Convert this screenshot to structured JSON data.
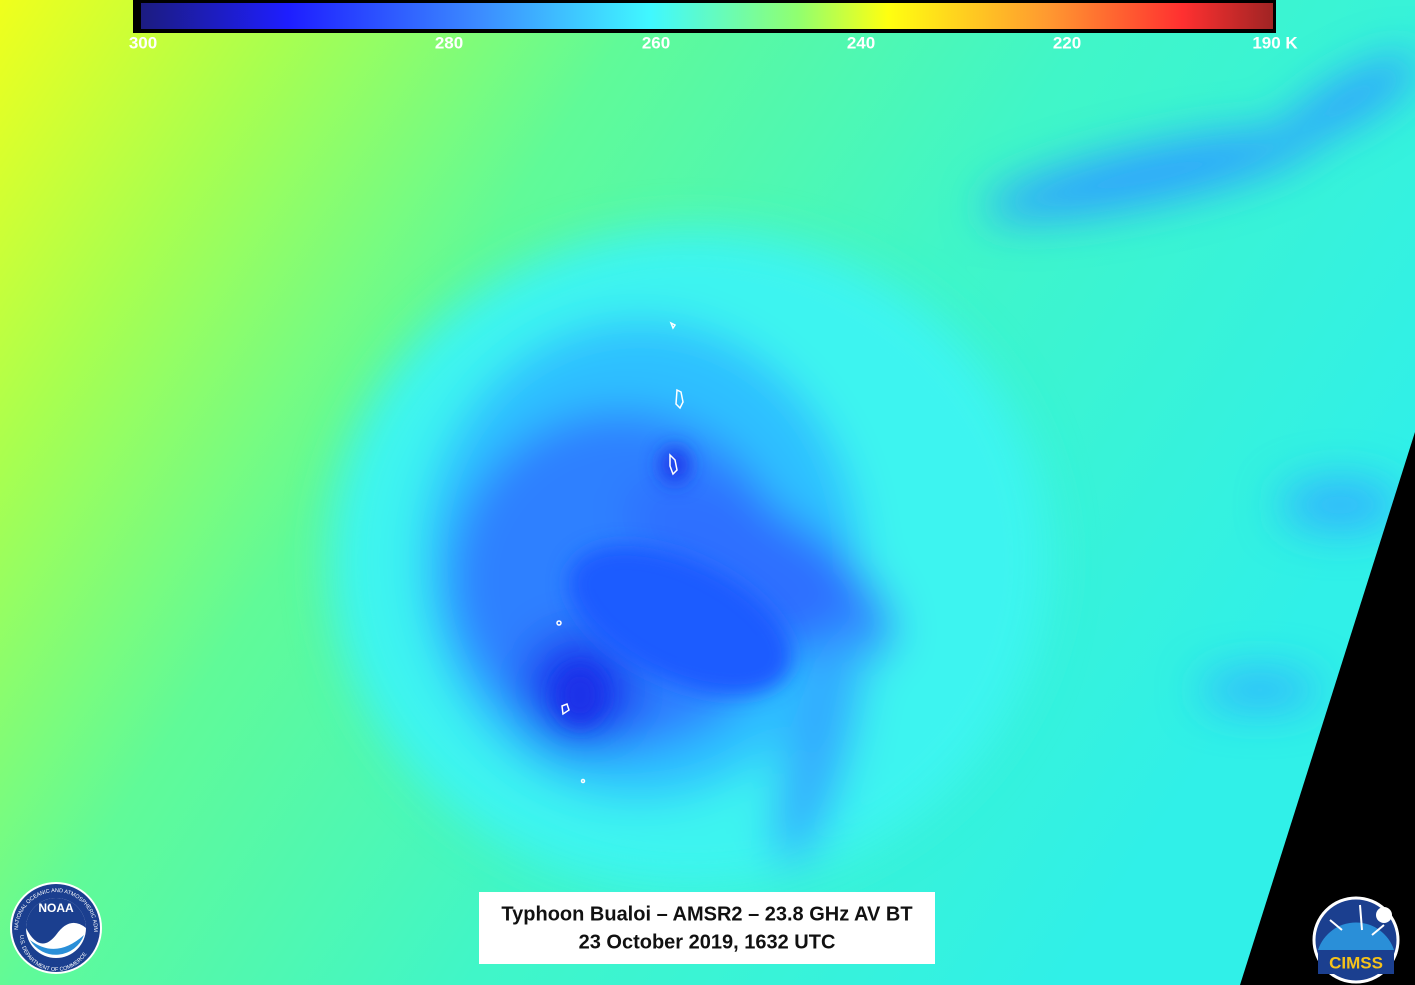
{
  "colorbar": {
    "labels": [
      "300",
      "280",
      "260",
      "240",
      "220",
      "190 K"
    ]
  },
  "caption": {
    "line1": "Typhoon Bualoi – AMSR2 – 23.8 GHz AV BT",
    "line2": "23 October 2019, 1632 UTC"
  },
  "logos": {
    "noaa": "NOAA",
    "noaa_ring_top": "NATIONAL OCEANIC AND ATMOSPHERIC ADMINISTRATION",
    "noaa_ring_bottom": "U.S. DEPARTMENT OF COMMERCE",
    "cimss": "CIMSS"
  }
}
